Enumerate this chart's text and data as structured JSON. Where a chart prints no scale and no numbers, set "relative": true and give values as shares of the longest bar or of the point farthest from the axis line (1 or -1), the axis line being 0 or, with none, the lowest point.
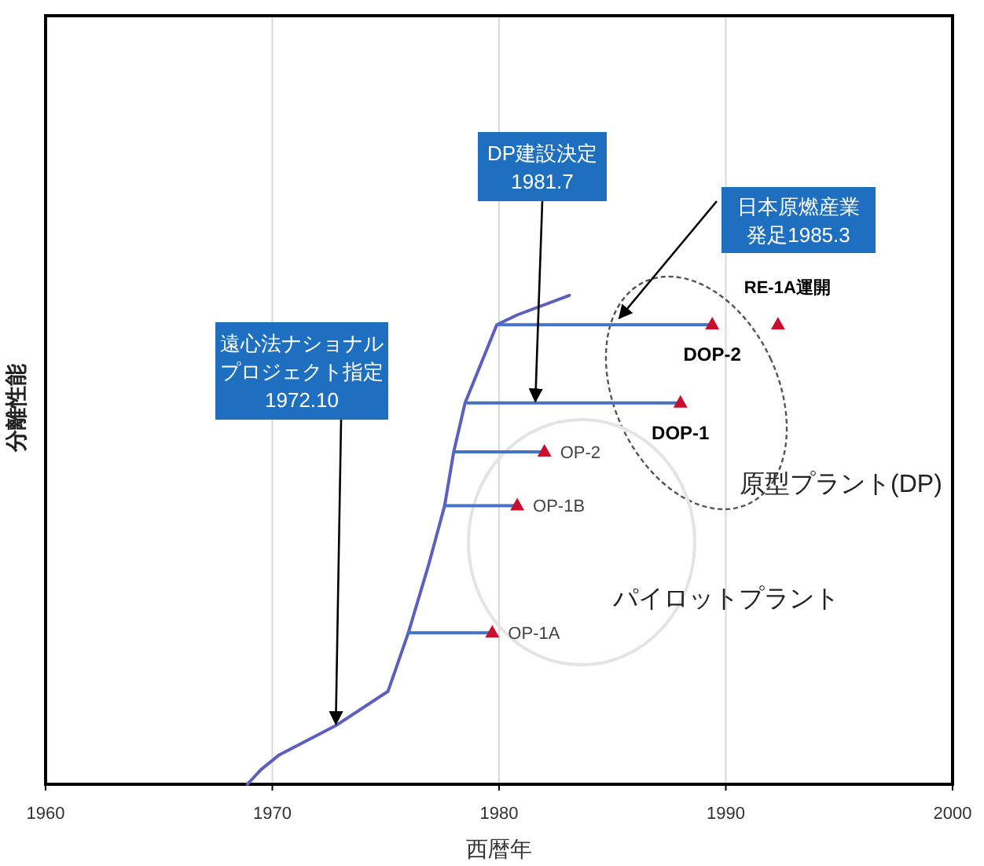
{
  "chart_data": {
    "type": "line",
    "relative": true,
    "xlabel": "西暦年",
    "ylabel": "分離性能",
    "xlim": [
      1960,
      2000
    ],
    "xticks": [
      1960,
      1970,
      1980,
      1990,
      2000
    ],
    "grid": "x",
    "series": [
      {
        "color": "#5b5fbf",
        "marker": "none",
        "x": [
          1968.9,
          1969.5,
          1970.3,
          1972.8,
          1975.1,
          1976.0,
          1976.9,
          1977.6,
          1978.0,
          1978.5,
          1979.2,
          1979.9,
          1980.8,
          1983.1
        ],
        "values": [
          0,
          0.03,
          0.06,
          0.12,
          0.19,
          0.31,
          0.45,
          0.57,
          0.68,
          0.78,
          0.86,
          0.94,
          0.96,
          1.0
        ]
      },
      {
        "type": "line",
        "color": "#4472c4",
        "marker": "none",
        "x": [
          1976.0,
          1979.7
        ],
        "values": [
          0.31,
          0.31
        ]
      },
      {
        "type": "line",
        "color": "#4472c4",
        "marker": "none",
        "x": [
          1977.6,
          1980.8
        ],
        "values": [
          0.57,
          0.57
        ]
      },
      {
        "type": "line",
        "color": "#4472c4",
        "marker": "none",
        "x": [
          1978.0,
          1982.0
        ],
        "values": [
          0.68,
          0.68
        ]
      },
      {
        "type": "line",
        "color": "#4472c4",
        "marker": "none",
        "x": [
          1978.6,
          1988.0
        ],
        "values": [
          0.78,
          0.78
        ]
      },
      {
        "type": "line",
        "color": "#4472c4",
        "marker": "none",
        "x": [
          1980.0,
          1989.4
        ],
        "values": [
          0.94,
          0.94
        ]
      },
      {
        "type": "scatter",
        "color": "#c8102e",
        "marker": "triangle",
        "x": [
          1979.7,
          1980.8,
          1982.0,
          1988.0,
          1989.4,
          1992.3
        ],
        "values": [
          0.31,
          0.57,
          0.68,
          0.78,
          0.94,
          0.94
        ]
      }
    ],
    "annotations": [
      {
        "text": "遠心法ナショナルプロジェクト指定\n1972.10",
        "x": 1972.8,
        "y": 0.12
      },
      {
        "text": "DP建設決定\n1981.7",
        "x": 1981.6,
        "y": 0.78
      },
      {
        "text": "日本原燃産業発足1985.3",
        "x": 1985.3,
        "y": 0.95
      },
      {
        "text": "OP-1A",
        "x": 1979.7,
        "y": 0.31
      },
      {
        "text": "OP-1B",
        "x": 1980.8,
        "y": 0.57
      },
      {
        "text": "OP-2",
        "x": 1982.0,
        "y": 0.68
      },
      {
        "text": "DOP-1",
        "x": 1988.0,
        "y": 0.78
      },
      {
        "text": "DOP-2",
        "x": 1989.4,
        "y": 0.94
      },
      {
        "text": "RE-1A運開",
        "x": 1992.3,
        "y": 0.94
      },
      "原型プラント(DP)",
      "パイロットプラント"
    ]
  }
}
